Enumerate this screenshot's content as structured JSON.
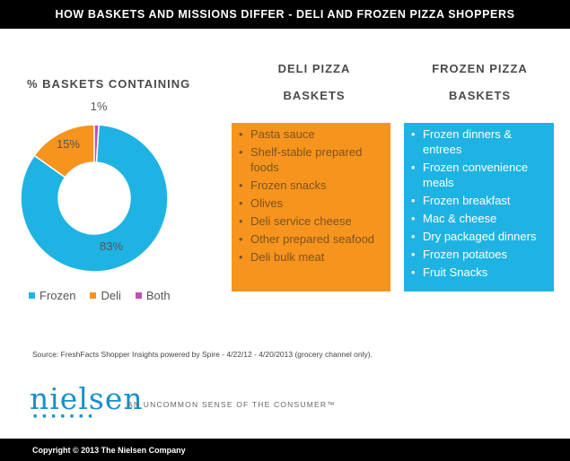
{
  "header": {
    "title": "HOW BASKETS AND MISSIONS DIFFER - DELI AND FROZEN PIZZA SHOPPERS"
  },
  "chart_data": {
    "type": "pie",
    "title": "% BASKETS CONTAINING",
    "categories": [
      "Frozen",
      "Deli",
      "Both"
    ],
    "values": [
      83,
      15,
      1
    ],
    "labels": [
      "83%",
      "15%",
      "1%"
    ],
    "colors": [
      "#1fb3e4",
      "#f7941d",
      "#c34fb0"
    ],
    "legend_position": "bottom"
  },
  "deli": {
    "heading_line1": "DELI PIZZA",
    "heading_line2": "BASKETS",
    "items": [
      "Pasta sauce",
      "Shelf-stable prepared foods",
      "Frozen snacks",
      "Olives",
      "Deli service cheese",
      "Other prepared seafood",
      "Deli bulk meat"
    ]
  },
  "frozen": {
    "heading_line1": "FROZEN PIZZA",
    "heading_line2": "BASKETS",
    "items": [
      "Frozen dinners & entrees",
      "Frozen convenience meals",
      "Frozen breakfast",
      "Mac & cheese",
      "Dry packaged dinners",
      "Frozen potatoes",
      "Fruit Snacks"
    ]
  },
  "source": "Source: FreshFacts Shopper Insights powered by Spire - 4/22/12 - 4/20/2013 (grocery channel only).",
  "logo": {
    "text": "nielsen",
    "tagline": "AN UNCOMMON SENSE OF THE CONSUMER™"
  },
  "footer": {
    "copyright": "Copyright © 2013 The Nielsen Company"
  }
}
